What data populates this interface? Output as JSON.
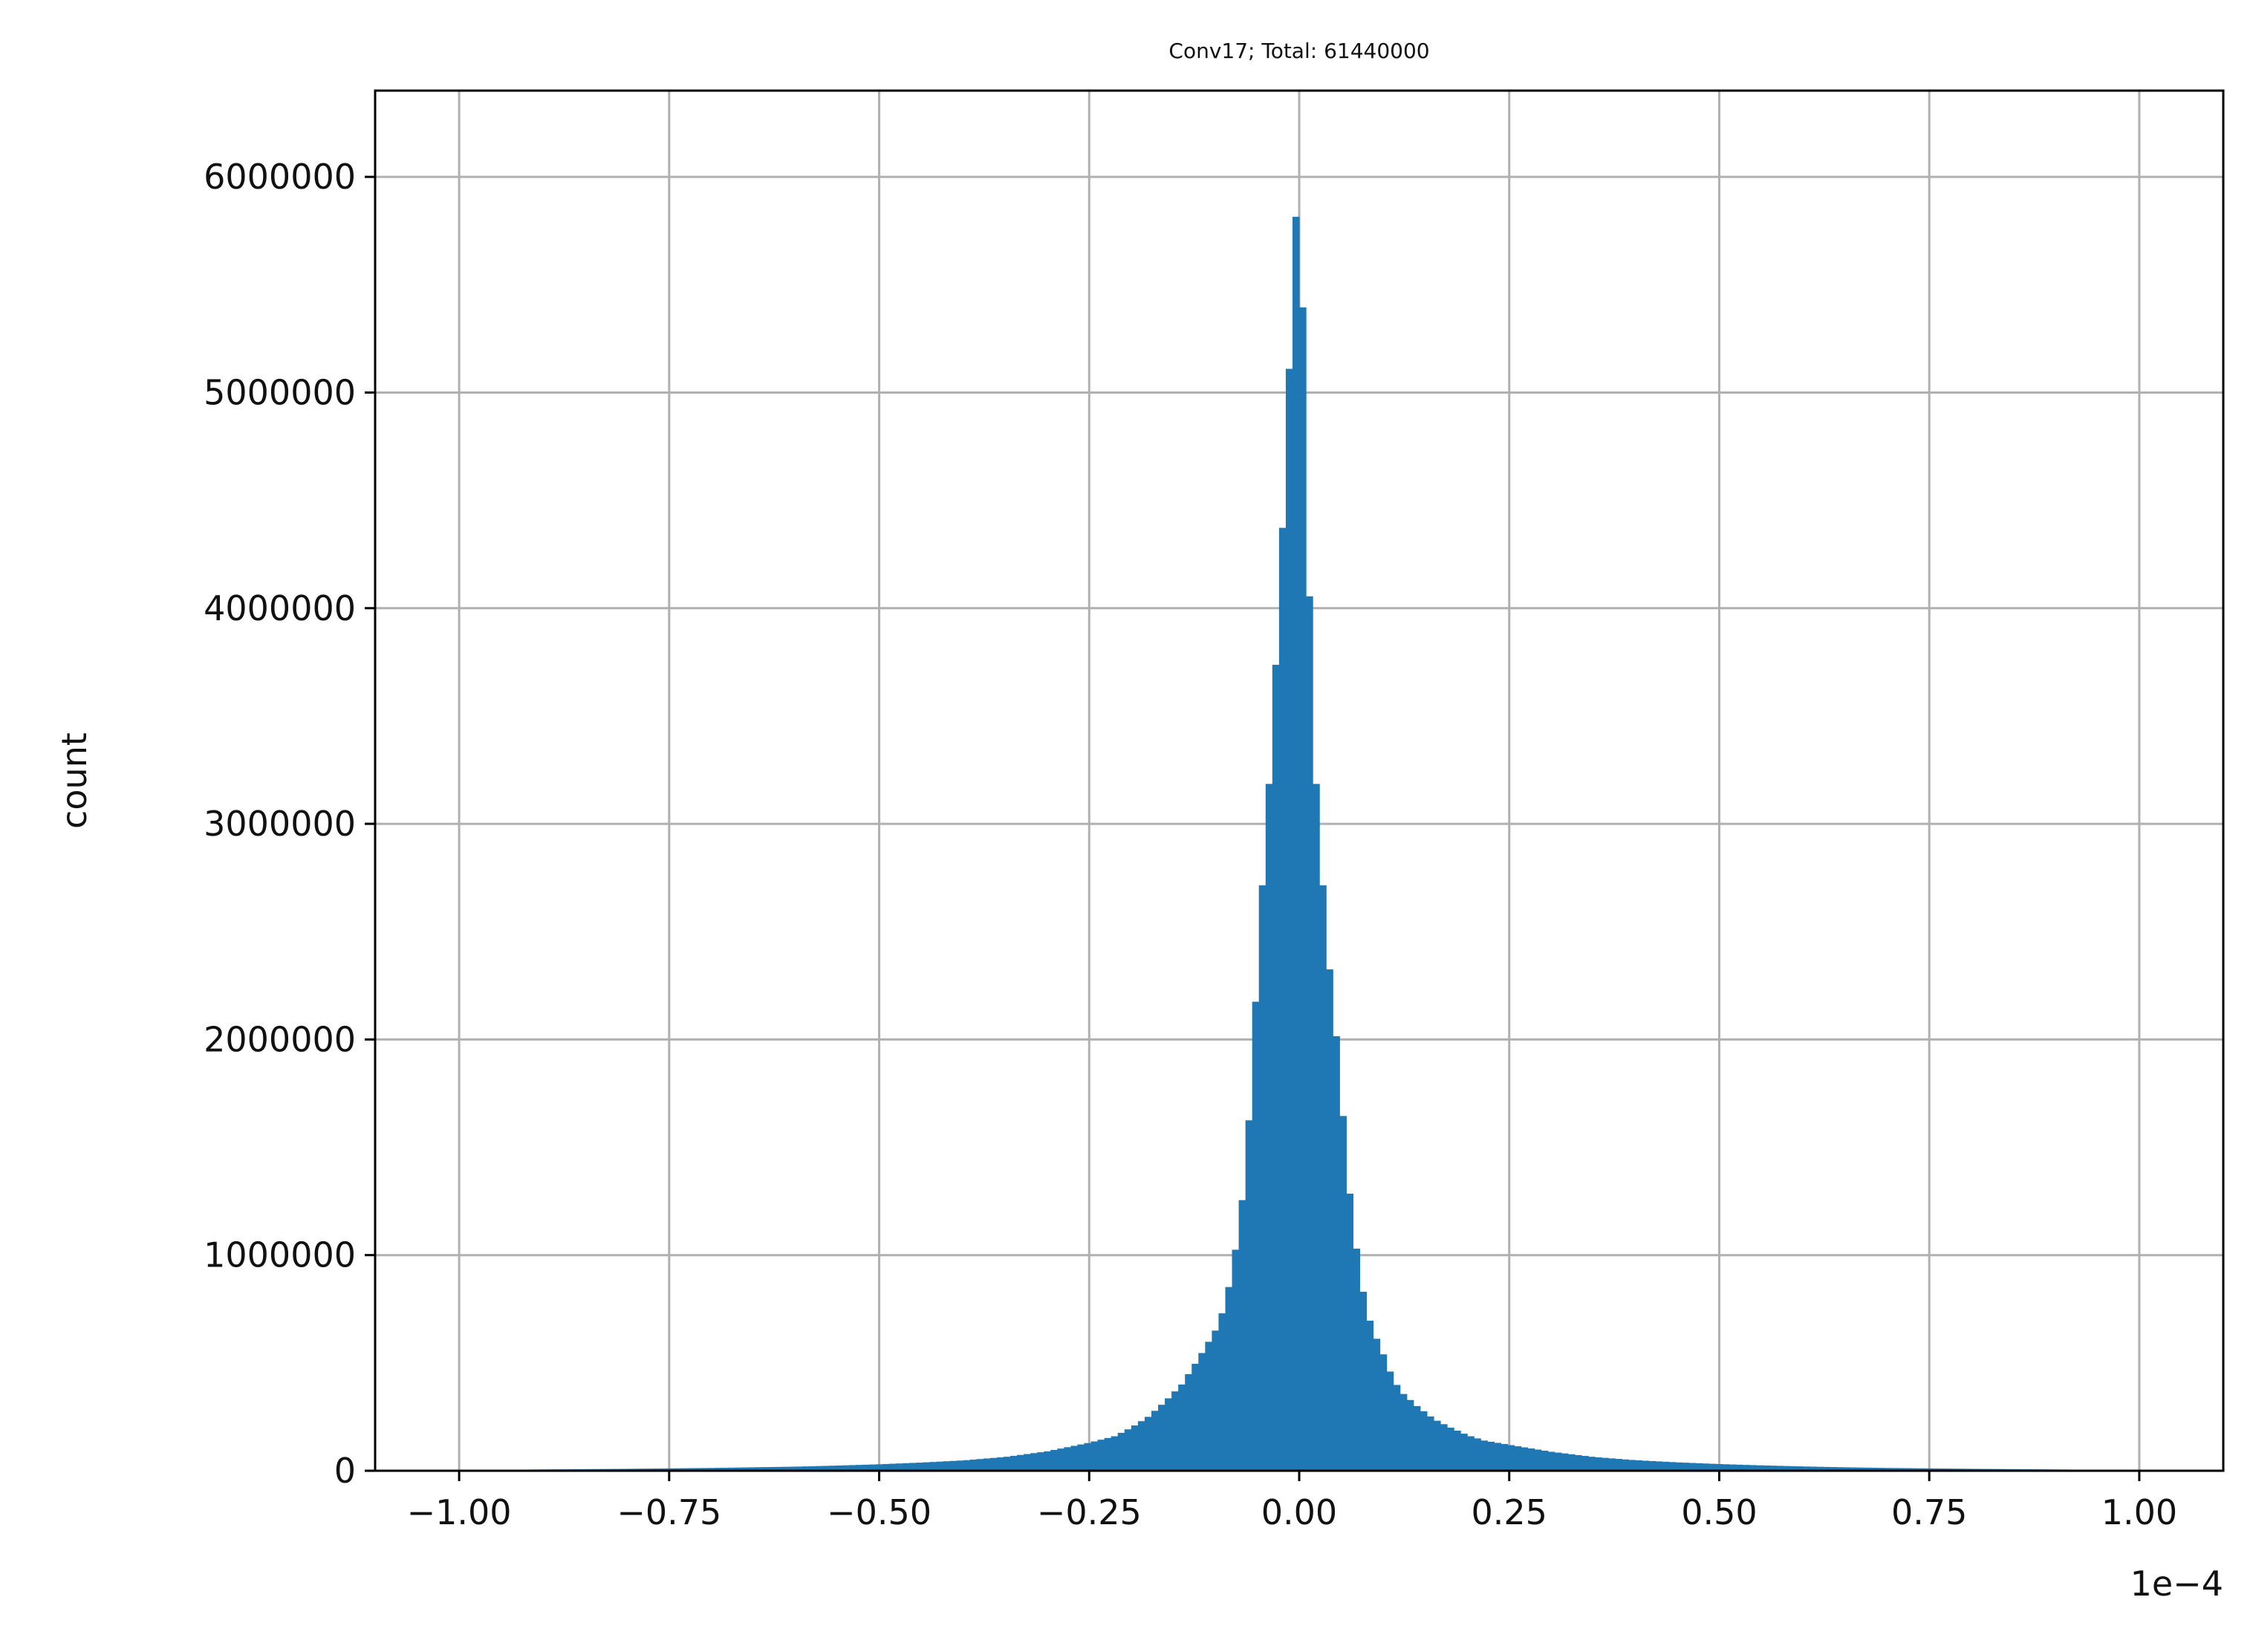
{
  "chart_data": {
    "type": "bar",
    "title": "Conv17; Total: 61440000",
    "xlabel": "",
    "ylabel": "count",
    "x_offset_text": "1e−4",
    "xlim": [
      -1.1,
      1.1
    ],
    "ylim": [
      0,
      6400000
    ],
    "grid": true,
    "x_ticks": [
      -1.0,
      -0.75,
      -0.5,
      -0.25,
      0.0,
      0.25,
      0.5,
      0.75,
      1.0
    ],
    "x_tick_labels": [
      "−1.00",
      "−0.75",
      "−0.50",
      "−0.25",
      "0.00",
      "0.25",
      "0.50",
      "0.75",
      "1.00"
    ],
    "y_ticks": [
      0,
      1000000,
      2000000,
      3000000,
      4000000,
      5000000,
      6000000
    ],
    "y_tick_labels": [
      "0",
      "1000000",
      "2000000",
      "3000000",
      "4000000",
      "5000000",
      "6000000"
    ],
    "bin_range": [
      -1.0,
      1.0
    ],
    "bin_width": 0.008,
    "bins": [
      {
        "x": -0.99,
        "y": 3000
      },
      {
        "x": -0.9,
        "y": 6000
      },
      {
        "x": -0.8,
        "y": 9000
      },
      {
        "x": -0.75,
        "y": 11000
      },
      {
        "x": -0.7,
        "y": 13000
      },
      {
        "x": -0.65,
        "y": 16000
      },
      {
        "x": -0.6,
        "y": 19000
      },
      {
        "x": -0.55,
        "y": 24000
      },
      {
        "x": -0.5,
        "y": 30000
      },
      {
        "x": -0.45,
        "y": 38000
      },
      {
        "x": -0.4,
        "y": 48000
      },
      {
        "x": -0.35,
        "y": 64000
      },
      {
        "x": -0.3,
        "y": 90000
      },
      {
        "x": -0.25,
        "y": 130000
      },
      {
        "x": -0.22,
        "y": 160000
      },
      {
        "x": -0.2,
        "y": 200000
      },
      {
        "x": -0.18,
        "y": 250000
      },
      {
        "x": -0.16,
        "y": 320000
      },
      {
        "x": -0.14,
        "y": 400000
      },
      {
        "x": -0.12,
        "y": 520000
      },
      {
        "x": -0.1,
        "y": 650000
      },
      {
        "x": -0.09,
        "y": 750000
      },
      {
        "x": -0.08,
        "y": 920000
      },
      {
        "x": -0.072,
        "y": 1130000
      },
      {
        "x": -0.064,
        "y": 1380000
      },
      {
        "x": -0.056,
        "y": 1870000
      },
      {
        "x": -0.048,
        "y": 2480000
      },
      {
        "x": -0.032,
        "y": 3420000
      },
      {
        "x": -0.016,
        "y": 4690000
      },
      {
        "x": -0.008,
        "y": 5530000
      },
      {
        "x": 0.0,
        "y": 6100000
      },
      {
        "x": 0.008,
        "y": 4690000
      },
      {
        "x": 0.016,
        "y": 3420000
      },
      {
        "x": 0.032,
        "y": 2480000
      },
      {
        "x": 0.048,
        "y": 1860000
      },
      {
        "x": 0.056,
        "y": 1430000
      },
      {
        "x": 0.064,
        "y": 1140000
      },
      {
        "x": 0.072,
        "y": 920000
      },
      {
        "x": 0.08,
        "y": 740000
      },
      {
        "x": 0.09,
        "y": 630000
      },
      {
        "x": 0.1,
        "y": 540000
      },
      {
        "x": 0.11,
        "y": 440000
      },
      {
        "x": 0.12,
        "y": 370000
      },
      {
        "x": 0.14,
        "y": 300000
      },
      {
        "x": 0.16,
        "y": 240000
      },
      {
        "x": 0.18,
        "y": 200000
      },
      {
        "x": 0.2,
        "y": 165000
      },
      {
        "x": 0.22,
        "y": 140000
      },
      {
        "x": 0.25,
        "y": 120000
      },
      {
        "x": 0.3,
        "y": 88000
      },
      {
        "x": 0.35,
        "y": 64000
      },
      {
        "x": 0.4,
        "y": 49000
      },
      {
        "x": 0.45,
        "y": 39000
      },
      {
        "x": 0.5,
        "y": 31000
      },
      {
        "x": 0.55,
        "y": 25000
      },
      {
        "x": 0.6,
        "y": 20000
      },
      {
        "x": 0.65,
        "y": 16000
      },
      {
        "x": 0.7,
        "y": 13000
      },
      {
        "x": 0.75,
        "y": 11000
      },
      {
        "x": 0.8,
        "y": 9000
      },
      {
        "x": 0.9,
        "y": 6000
      },
      {
        "x": 0.99,
        "y": 3000
      }
    ],
    "colors": {
      "bar": "#1f77b4",
      "grid": "#b0b0b0",
      "axis": "#000000"
    }
  }
}
